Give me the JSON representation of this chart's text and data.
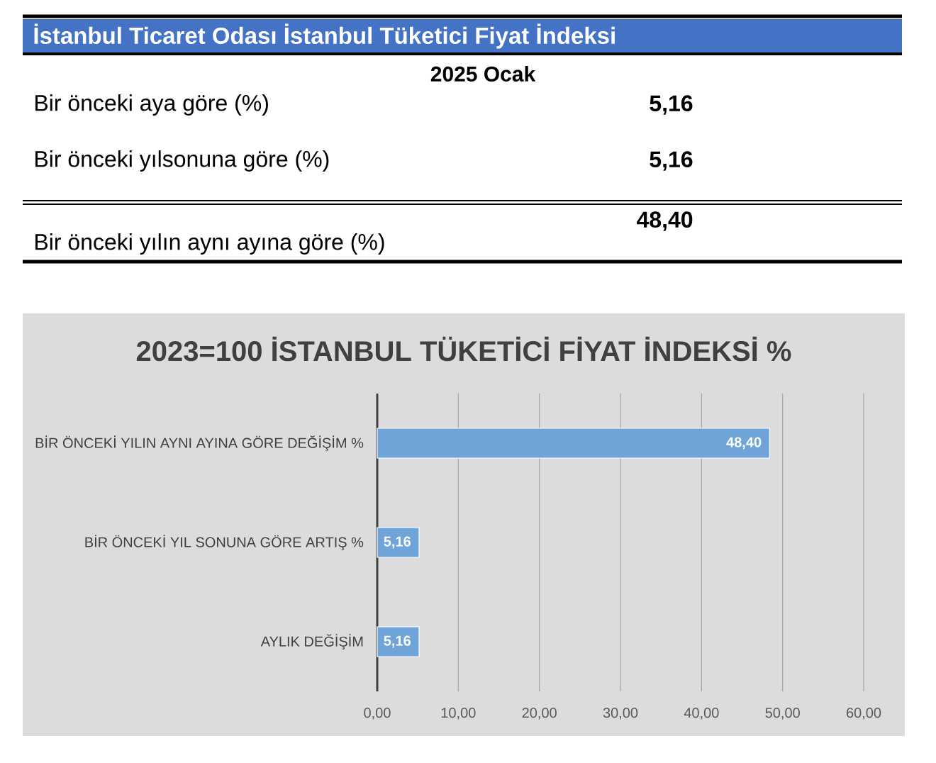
{
  "chart_data": [
    {
      "type": "other",
      "title": "İstanbul Ticaret Odası İstanbul Tüketici Fiyat İndeksi",
      "subtitle": "2025 Ocak",
      "annotations": [
        "Bir önceki aya göre (%)",
        "5,16",
        "Bir önceki yılsonuna göre  (%)",
        "5,16",
        "Bir önceki yılın aynı ayına göre  (%)",
        "48,40"
      ]
    },
    {
      "type": "bar",
      "orientation": "horizontal",
      "title": "2023=100 İSTANBUL TÜKETİCİ FİYAT İNDEKSİ %",
      "categories": [
        "BİR ÖNCEKİ YILIN AYNI AYINA GÖRE DEĞİŞİM %",
        "BİR ÖNCEKİ YIL SONUNA GÖRE ARTIŞ %",
        "AYLIK DEĞİŞİM"
      ],
      "values": [
        48.4,
        5.16,
        5.16
      ],
      "value_labels": [
        "48,40",
        "5,16",
        "5,16"
      ],
      "color": "#6fa4d8",
      "xlim": [
        0,
        60
      ],
      "xticks": [
        {
          "value": 0,
          "label": "0,00"
        },
        {
          "value": 10,
          "label": "10,00"
        },
        {
          "value": 20,
          "label": "20,00"
        },
        {
          "value": 30,
          "label": "30,00"
        },
        {
          "value": 40,
          "label": "40,00"
        },
        {
          "value": 50,
          "label": "50,00"
        },
        {
          "value": 60,
          "label": "60,00"
        }
      ],
      "grid": "x"
    }
  ]
}
